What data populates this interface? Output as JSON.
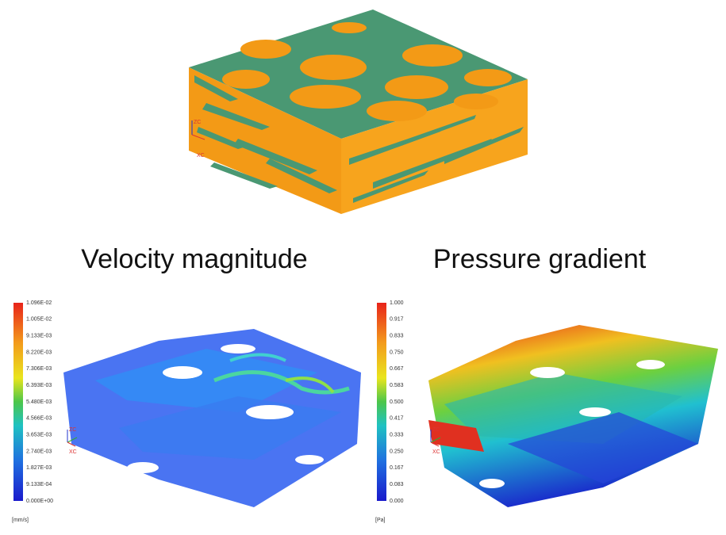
{
  "top_model": {
    "axis_labels": [
      "ZC",
      "XC"
    ]
  },
  "panels": [
    {
      "title": "Velocity magnitude",
      "colorbar": {
        "labels": [
          "1.096E-02",
          "1.005E-02",
          "9.133E-03",
          "8.220E-03",
          "7.306E-03",
          "6.393E-03",
          "5.480E-03",
          "4.566E-03",
          "3.653E-03",
          "2.740E-03",
          "1.827E-03",
          "9.133E-04",
          "0.000E+00"
        ],
        "unit": "[mm/s]"
      },
      "axis_labels": [
        "ZC",
        "XC"
      ]
    },
    {
      "title": "Pressure gradient",
      "colorbar": {
        "labels": [
          "1.000",
          "0.917",
          "0.833",
          "0.750",
          "0.667",
          "0.583",
          "0.500",
          "0.417",
          "0.333",
          "0.250",
          "0.167",
          "0.083",
          "0.000"
        ],
        "unit": "[Pa]"
      },
      "axis_labels": [
        "ZC",
        "XC"
      ]
    }
  ]
}
